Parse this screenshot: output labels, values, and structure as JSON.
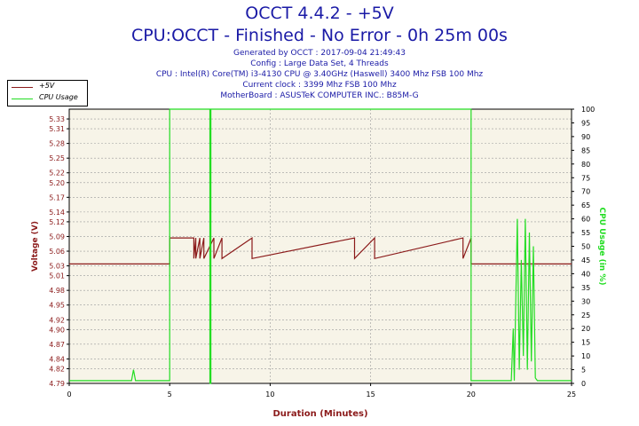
{
  "header": {
    "title": "OCCT 4.4.2 - +5V",
    "subtitle": "CPU:OCCT - Finished - No Error - 0h 25m 00s",
    "lines": [
      "Generated by OCCT : 2017-09-04 21:49:43",
      "Config : Large Data Set, 4 Threads",
      "CPU : Intel(R) Core(TM) i3-4130 CPU @ 3.40GHz (Haswell) 3400 Mhz FSB 100 Mhz",
      "Current clock : 3399 Mhz FSB 100 Mhz",
      "MotherBoard : ASUSTeK COMPUTER INC.: B85M-G"
    ]
  },
  "legend": [
    {
      "label": "+5V",
      "color": "#8b1a1a"
    },
    {
      "label": "CPU Usage",
      "color": "#22dd22"
    }
  ],
  "chart_data": {
    "type": "line",
    "xlabel": "Duration (Minutes)",
    "ylabel": "Voltage (V)",
    "y2label": "CPU Usage (in %)",
    "xlim": [
      0,
      25
    ],
    "ylim": [
      4.79,
      5.35
    ],
    "y2lim": [
      0,
      100
    ],
    "x_ticks": [
      0,
      5,
      10,
      15,
      20,
      25
    ],
    "y_ticks": [
      "4.79",
      "4.82",
      "4.84",
      "4.87",
      "4.90",
      "4.92",
      "4.95",
      "4.98",
      "5.01",
      "5.03",
      "5.06",
      "5.09",
      "5.12",
      "5.14",
      "5.17",
      "5.20",
      "5.22",
      "5.25",
      "5.28",
      "5.31",
      "5.33"
    ],
    "y2_ticks": [
      0,
      5,
      10,
      15,
      20,
      25,
      30,
      35,
      40,
      45,
      50,
      55,
      60,
      65,
      70,
      75,
      80,
      85,
      90,
      95,
      100
    ],
    "grid": true,
    "colors": {
      "voltage": "#8b1a1a",
      "cpu": "#22dd22",
      "axis_left": "#8b1a1a",
      "axis_right": "#22dd22"
    },
    "series": [
      {
        "name": "+5V",
        "axis": "left",
        "x": [
          0,
          5.0,
          5.0,
          6.2,
          6.2,
          6.3,
          6.3,
          6.5,
          6.5,
          6.7,
          6.7,
          7.2,
          7.2,
          7.6,
          7.6,
          9.1,
          9.1,
          14.2,
          14.2,
          15.2,
          15.2,
          19.6,
          19.6,
          20.0,
          20.0,
          25.0
        ],
        "y": [
          5.034,
          5.034,
          5.087,
          5.087,
          5.045,
          5.087,
          5.045,
          5.087,
          5.045,
          5.087,
          5.045,
          5.087,
          5.045,
          5.087,
          5.045,
          5.087,
          5.045,
          5.087,
          5.045,
          5.087,
          5.045,
          5.087,
          5.045,
          5.087,
          5.034,
          5.034
        ]
      },
      {
        "name": "CPU Usage",
        "axis": "right",
        "x": [
          0,
          3.1,
          3.2,
          3.3,
          5.0,
          5.0,
          7.0,
          7.0,
          7.05,
          7.05,
          20.0,
          20.0,
          22.0,
          22.1,
          22.15,
          22.3,
          22.4,
          22.5,
          22.6,
          22.7,
          22.8,
          22.9,
          23.0,
          23.1,
          23.2,
          23.3,
          25.0
        ],
        "y": [
          1,
          1,
          5,
          1,
          1,
          100,
          100,
          0,
          0,
          100,
          100,
          1,
          1,
          20,
          1,
          60,
          5,
          45,
          10,
          60,
          5,
          55,
          8,
          50,
          2,
          1,
          1
        ]
      }
    ]
  }
}
